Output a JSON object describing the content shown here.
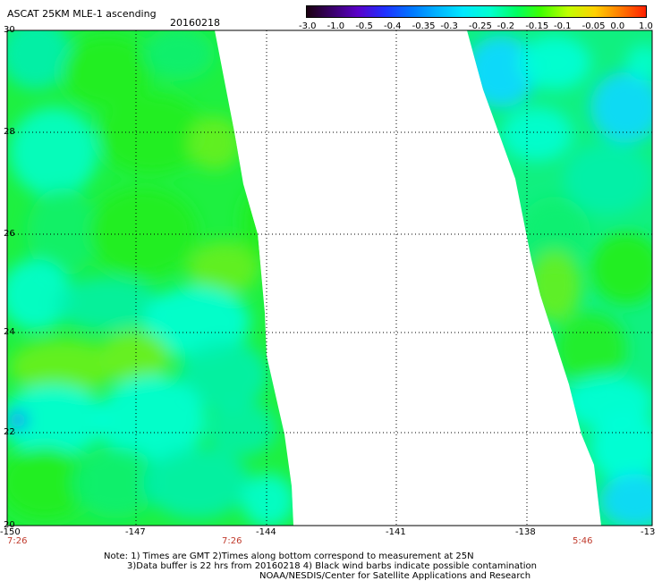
{
  "header": {
    "title": "ASCAT 25KM MLE-1 ascending",
    "date": "20160218"
  },
  "colorbar": {
    "labels": [
      "-3.0",
      "-1.0",
      "-0.5",
      "-0.4",
      "-0.35",
      "-0.3",
      "-0.25",
      "-0.2",
      "-0.15",
      "-0.1",
      "-0.05",
      "0.0",
      "1.0"
    ],
    "colors": [
      "#1a0010",
      "#3c0070",
      "#5a00c8",
      "#2030ff",
      "#0078ff",
      "#00b0ff",
      "#00e8ff",
      "#00ffd0",
      "#00ff60",
      "#40ff00",
      "#c0ff00",
      "#ffd000",
      "#ff8000",
      "#ff2000"
    ]
  },
  "axes": {
    "y_labels": [
      "30",
      "28",
      "26",
      "24",
      "22",
      "20"
    ],
    "x_labels": [
      "-150",
      "-147",
      "-144",
      "-141",
      "-138",
      "-13"
    ]
  },
  "times": {
    "left": "7:26",
    "middle": "7:26",
    "right": "5:46"
  },
  "notes": {
    "line1": "Note: 1) Times are GMT 2)Times along bottom correspond to measurement at 25N",
    "line2": "3)Data buffer is 22 hrs from 20160218 4) Black wind barbs indicate possible contamination",
    "line3": "NOAA/NESDIS/Center for Satellite Applications and Research"
  },
  "colors": {
    "swath_green": "#22ee22",
    "swath_cyan": "#00ffe0",
    "swath_blue": "#00c8ff",
    "time_red": "#c0392b"
  }
}
